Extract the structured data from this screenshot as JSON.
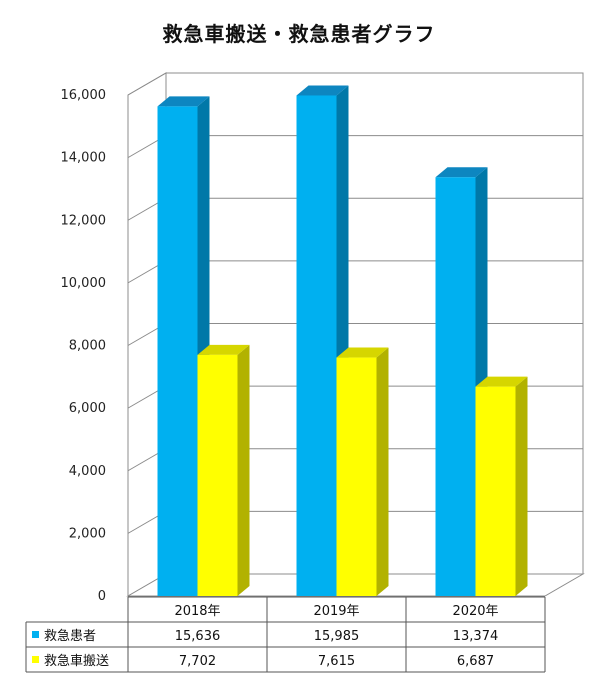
{
  "chart_data": {
    "type": "bar",
    "title": "救急車搬送・救急患者グラフ",
    "categories": [
      "2018年",
      "2019年",
      "2020年"
    ],
    "series": [
      {
        "name": "救急患者",
        "values": [
          15636,
          15985,
          13374
        ],
        "labels": [
          "15,636",
          "15,985",
          "13,374"
        ],
        "color": "#00b0f0"
      },
      {
        "name": "救急車搬送",
        "values": [
          7702,
          7615,
          6687
        ],
        "labels": [
          "7,702",
          "7,615",
          "6,687"
        ],
        "color": "#ffff00"
      }
    ],
    "ylim": [
      0,
      16000
    ],
    "yticks": [
      "0",
      "2,000",
      "4,000",
      "6,000",
      "8,000",
      "10,000",
      "12,000",
      "14,000",
      "16,000"
    ],
    "grid": true,
    "legend": "data-table",
    "xlabel": "",
    "ylabel": ""
  }
}
